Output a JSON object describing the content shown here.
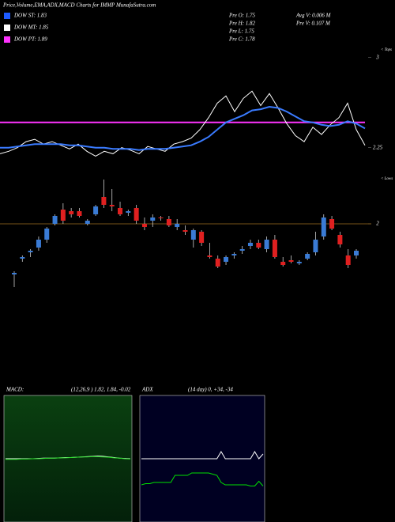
{
  "header": {
    "title": "Price,Volume,EMA,ADX,MACD Charts for IMMP MunafaSutra.com",
    "legend": [
      {
        "label": "DOW ST: 1.83",
        "color": "#1e5bff"
      },
      {
        "label": "DOW MT: 1.85",
        "color": "#ffffff"
      },
      {
        "label": "DOW PT: 1.89",
        "color": "#ff33ff"
      }
    ],
    "info": [
      "Pre  O: 1.75",
      "Pre  H: 1.82",
      "Pre  L: 1.75",
      "Pre  C: 1.78",
      "Avg V: 0.006  M",
      "Pre  V: 0.107 M"
    ]
  },
  "chart_data": [
    {
      "type": "line",
      "annotation": "< Tops",
      "ylim": [
        2.13,
        3.07
      ],
      "yticks": [
        3,
        2.25
      ],
      "level": 2.46,
      "level_color": "#ff33ff",
      "series": [
        {
          "color": "#ffffff",
          "values": [
            2.2,
            2.22,
            2.25,
            2.3,
            2.32,
            2.28,
            2.3,
            2.27,
            2.24,
            2.28,
            2.22,
            2.18,
            2.22,
            2.2,
            2.25,
            2.23,
            2.2,
            2.26,
            2.24,
            2.22,
            2.28,
            2.3,
            2.33,
            2.4,
            2.5,
            2.62,
            2.68,
            2.55,
            2.66,
            2.72,
            2.6,
            2.7,
            2.58,
            2.45,
            2.35,
            2.3,
            2.42,
            2.36,
            2.44,
            2.5,
            2.62,
            2.4,
            2.27
          ]
        },
        {
          "color": "#3a7bff",
          "values": [
            2.25,
            2.25,
            2.26,
            2.27,
            2.28,
            2.28,
            2.28,
            2.28,
            2.27,
            2.27,
            2.26,
            2.25,
            2.25,
            2.24,
            2.24,
            2.24,
            2.23,
            2.24,
            2.24,
            2.24,
            2.25,
            2.26,
            2.27,
            2.3,
            2.34,
            2.4,
            2.46,
            2.49,
            2.52,
            2.56,
            2.57,
            2.59,
            2.58,
            2.55,
            2.51,
            2.47,
            2.46,
            2.44,
            2.43,
            2.44,
            2.47,
            2.45,
            2.41
          ]
        }
      ]
    },
    {
      "type": "candlestick",
      "annotation": "< Lows",
      "ylim": [
        1.515,
        2.29
      ],
      "yticks": [
        2
      ],
      "grid_color": "#a07020",
      "up_color": "#3a7bd5",
      "down_color": "#e02020",
      "open": [
        1.68,
        1.78,
        1.82,
        1.85,
        1.9,
        2.0,
        2.09,
        2.08,
        2.08,
        2.0,
        2.06,
        2.17,
        2.12,
        2.1,
        2.07,
        2.1,
        2.0,
        2.02,
        2.04,
        2.03,
        1.98,
        1.96,
        1.9,
        1.95,
        1.8,
        1.78,
        1.76,
        1.8,
        1.83,
        1.86,
        1.88,
        1.84,
        1.9,
        1.76,
        1.77,
        1.75,
        1.78,
        1.82,
        1.92,
        2.03,
        1.93,
        1.8,
        1.8
      ],
      "high": [
        1.7,
        1.8,
        1.84,
        1.92,
        1.98,
        2.06,
        2.13,
        2.1,
        2.1,
        2.03,
        2.12,
        2.28,
        2.22,
        2.14,
        2.09,
        2.12,
        2.04,
        2.06,
        2.05,
        2.05,
        2.03,
        1.99,
        1.97,
        1.96,
        1.88,
        1.8,
        1.8,
        1.82,
        1.86,
        1.9,
        1.9,
        1.92,
        1.93,
        1.79,
        1.8,
        1.77,
        1.82,
        1.95,
        2.06,
        2.05,
        1.95,
        1.84,
        1.84
      ],
      "low": [
        1.6,
        1.76,
        1.79,
        1.83,
        1.88,
        1.99,
        2.0,
        2.04,
        2.04,
        1.99,
        2.05,
        2.1,
        2.08,
        2.05,
        2.05,
        2.0,
        1.96,
        1.98,
        2.02,
        1.98,
        1.96,
        1.93,
        1.85,
        1.86,
        1.78,
        1.72,
        1.74,
        1.78,
        1.81,
        1.84,
        1.84,
        1.82,
        1.78,
        1.73,
        1.75,
        1.74,
        1.77,
        1.8,
        1.9,
        1.96,
        1.85,
        1.72,
        1.78
      ],
      "close": [
        1.69,
        1.79,
        1.83,
        1.9,
        1.97,
        2.05,
        2.02,
        2.06,
        2.05,
        2.02,
        2.11,
        2.12,
        2.11,
        2.06,
        2.08,
        2.02,
        1.98,
        2.04,
        2.035,
        1.99,
        2.0,
        1.95,
        1.96,
        1.88,
        1.79,
        1.73,
        1.79,
        1.81,
        1.84,
        1.88,
        1.85,
        1.9,
        1.79,
        1.74,
        1.76,
        1.76,
        1.81,
        1.9,
        2.04,
        1.97,
        1.87,
        1.74,
        1.83
      ]
    },
    {
      "type": "line",
      "title": "MACD:",
      "subtitle": "(12,26,9 ) 1.82, 1.84, -0.02",
      "ylim": [
        -1,
        1
      ],
      "series": [
        {
          "color": "#ffffff",
          "values": [
            0,
            0,
            0,
            0,
            0,
            0,
            0.005,
            0.01,
            0.01,
            0.01,
            0.015,
            0.02,
            0.02,
            0.025,
            0.03,
            0.035,
            0.04,
            0.045,
            0.04,
            0.03,
            0.02,
            0.01,
            0.005,
            0
          ]
        },
        {
          "color": "#22dd22",
          "values": [
            -0.01,
            -0.01,
            -0.01,
            -0.005,
            -0.005,
            0,
            0,
            0.005,
            0.01,
            0.01,
            0.015,
            0.015,
            0.02,
            0.025,
            0.03,
            0.03,
            0.035,
            0.035,
            0.03,
            0.025,
            0.015,
            0.01,
            0,
            -0.005
          ]
        }
      ]
    },
    {
      "type": "line",
      "title": "ADX",
      "subtitle": "(14  day) 0, +34, -34",
      "ylim": [
        0,
        100
      ],
      "series": [
        {
          "color": "#ffffff",
          "values": [
            50,
            50,
            50,
            50,
            50,
            50,
            50,
            50,
            50,
            50,
            50,
            50,
            50,
            50,
            50,
            50,
            50,
            50,
            50,
            56,
            50,
            50,
            50,
            50,
            50,
            50,
            50,
            56,
            50,
            54
          ]
        },
        {
          "color": "#00e000",
          "values": [
            28,
            29,
            29,
            30,
            30,
            30,
            30,
            30,
            36,
            36,
            36,
            36,
            38,
            38,
            38,
            38,
            38,
            37,
            36,
            30,
            28,
            28,
            28,
            28,
            28,
            28,
            27,
            27,
            31,
            27
          ]
        }
      ]
    }
  ]
}
